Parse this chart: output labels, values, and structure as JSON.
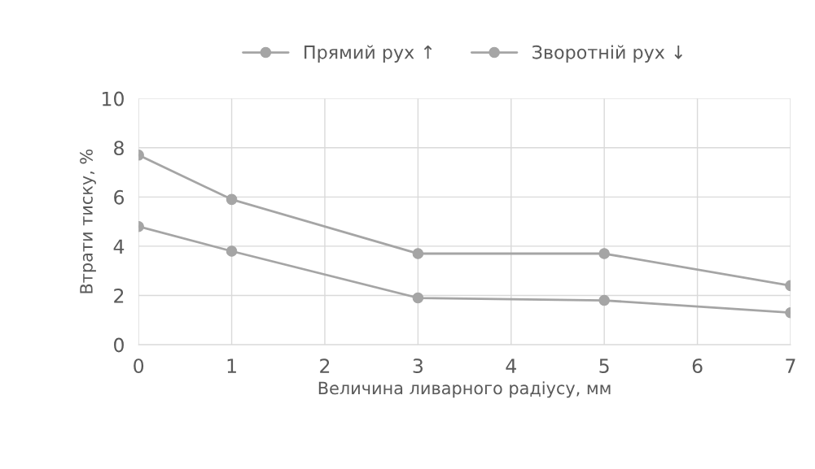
{
  "chart_data": {
    "type": "line",
    "xlabel": "Величина ливарного радіусу, мм",
    "ylabel": "Втрати тиску, %",
    "x": [
      0,
      1,
      3,
      5,
      7
    ],
    "series": [
      {
        "name": "Прямий рух ↑",
        "color": "#a5a5a5",
        "values": [
          4.8,
          3.8,
          1.9,
          1.8,
          1.3
        ]
      },
      {
        "name": "Зворотній рух ↓",
        "color": "#a5a5a5",
        "values": [
          7.7,
          5.9,
          3.7,
          3.7,
          2.4
        ]
      }
    ],
    "xlim": [
      0,
      7
    ],
    "xticks": [
      0,
      1,
      2,
      3,
      4,
      5,
      6,
      7
    ],
    "ylim": [
      0,
      10
    ],
    "yticks": [
      0,
      2,
      4,
      6,
      8,
      10
    ],
    "grid": true,
    "legend": "top",
    "marker": "circle",
    "line_style": "solid"
  }
}
